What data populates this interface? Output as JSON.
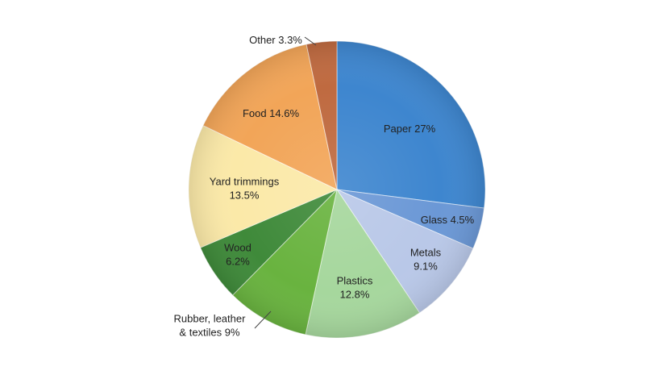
{
  "chart_data": {
    "type": "pie",
    "title": "",
    "slices": [
      {
        "name": "Paper",
        "value": 27,
        "label_lines": [
          "Paper 27%"
        ],
        "color": "#3e86cf"
      },
      {
        "name": "Glass",
        "value": 4.5,
        "label_lines": [
          "Glass 4.5%"
        ],
        "color": "#6b98d6"
      },
      {
        "name": "Metals",
        "value": 9.1,
        "label_lines": [
          "Metals",
          "9.1%"
        ],
        "color": "#b9c8e8"
      },
      {
        "name": "Plastics",
        "value": 12.8,
        "label_lines": [
          "Plastics",
          "12.8%"
        ],
        "color": "#a6d79d"
      },
      {
        "name": "Rubber, leather & textiles",
        "value": 9,
        "label_lines": [
          "Rubber, leather",
          "& textiles 9%"
        ],
        "color": "#69b33f"
      },
      {
        "name": "Wood",
        "value": 6.2,
        "label_lines": [
          "Wood",
          "6.2%"
        ],
        "color": "#3f8a3a"
      },
      {
        "name": "Yard trimmings",
        "value": 13.5,
        "label_lines": [
          "Yard trimmings",
          "13.5%"
        ],
        "color": "#fbe9a8"
      },
      {
        "name": "Food",
        "value": 14.6,
        "label_lines": [
          "Food 14.6%"
        ],
        "color": "#f2a558"
      },
      {
        "name": "Other",
        "value": 3.3,
        "label_lines": [
          "Other 3.3%"
        ],
        "color": "#bf6a40"
      }
    ],
    "start_angle_deg": 0,
    "direction": "clockwise",
    "legend": "none"
  }
}
